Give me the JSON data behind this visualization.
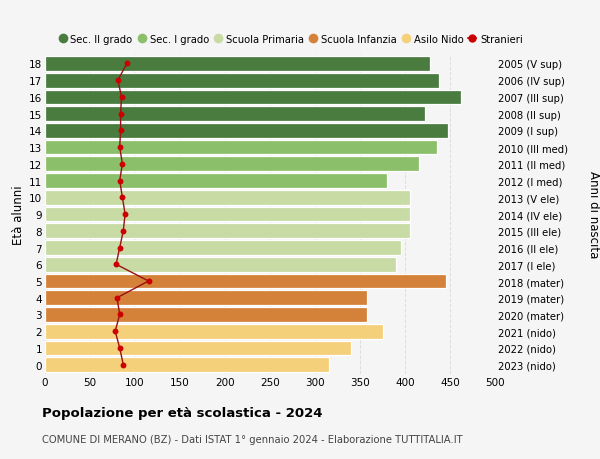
{
  "ages": [
    0,
    1,
    2,
    3,
    4,
    5,
    6,
    7,
    8,
    9,
    10,
    11,
    12,
    13,
    14,
    15,
    16,
    17,
    18
  ],
  "right_labels": [
    "2023 (nido)",
    "2022 (nido)",
    "2021 (nido)",
    "2020 (mater)",
    "2019 (mater)",
    "2018 (mater)",
    "2017 (I ele)",
    "2016 (II ele)",
    "2015 (III ele)",
    "2014 (IV ele)",
    "2013 (V ele)",
    "2012 (I med)",
    "2011 (II med)",
    "2010 (III med)",
    "2009 (I sup)",
    "2008 (II sup)",
    "2007 (III sup)",
    "2006 (IV sup)",
    "2005 (V sup)"
  ],
  "bar_values": [
    315,
    340,
    375,
    358,
    358,
    445,
    390,
    395,
    405,
    405,
    405,
    380,
    415,
    435,
    448,
    422,
    462,
    438,
    428
  ],
  "bar_colors": [
    "#f5d07a",
    "#f5d07a",
    "#f5d07a",
    "#d4813a",
    "#d4813a",
    "#d4813a",
    "#c8dba4",
    "#c8dba4",
    "#c8dba4",
    "#c8dba4",
    "#c8dba4",
    "#8bbf6a",
    "#8bbf6a",
    "#8bbf6a",
    "#4a7c40",
    "#4a7c40",
    "#4a7c40",
    "#4a7c40",
    "#4a7c40"
  ],
  "stranieri_values": [
    87,
    83,
    78,
    83,
    80,
    115,
    79,
    83,
    87,
    89,
    86,
    83,
    86,
    83,
    84,
    84,
    85,
    81,
    91
  ],
  "ylabel_left": "Età alunni",
  "ylabel_right": "Anni di nascita",
  "xlim": [
    0,
    500
  ],
  "xticks": [
    0,
    50,
    100,
    150,
    200,
    250,
    300,
    350,
    400,
    450,
    500
  ],
  "title_bold": "Popolazione per età scolastica - 2024",
  "subtitle": "COMUNE DI MERANO (BZ) - Dati ISTAT 1° gennaio 2024 - Elaborazione TUTTITALIA.IT",
  "legend_labels": [
    "Sec. II grado",
    "Sec. I grado",
    "Scuola Primaria",
    "Scuola Infanzia",
    "Asilo Nido",
    "Stranieri"
  ],
  "legend_colors": [
    "#4a7c40",
    "#8bbf6a",
    "#c8dba4",
    "#d4813a",
    "#f5d07a",
    "#cc0000"
  ],
  "bar_height": 0.88,
  "background_color": "#f5f5f5",
  "grid_color": "#dddddd",
  "stranieri_line_color": "#991111",
  "stranieri_dot_color": "#cc0000"
}
